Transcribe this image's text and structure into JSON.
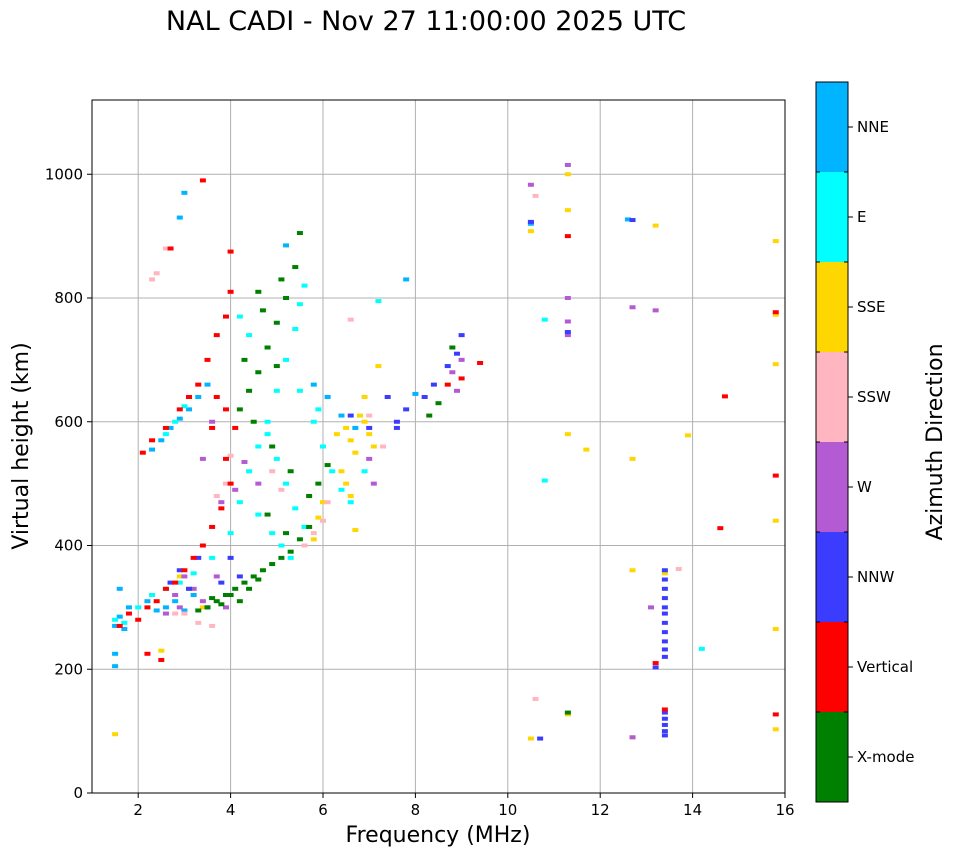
{
  "chart_data": {
    "type": "scatter",
    "title": "NAL CADI - Nov 27 11:00:00 2025 UTC",
    "xlabel": "Frequency (MHz)",
    "ylabel": "Virtual height (km)",
    "xlim": [
      1,
      16
    ],
    "ylim": [
      0,
      1120
    ],
    "xticks": [
      2,
      4,
      6,
      8,
      10,
      12,
      14,
      16
    ],
    "yticks": [
      0,
      200,
      400,
      600,
      800,
      1000
    ],
    "grid": true,
    "colorbar": {
      "label": "Azimuth Direction",
      "categories": [
        {
          "name": "X-mode",
          "color": "#008000"
        },
        {
          "name": "Vertical",
          "color": "#ff0000"
        },
        {
          "name": "NNW",
          "color": "#3c3cff"
        },
        {
          "name": "W",
          "color": "#b45ad2"
        },
        {
          "name": "SSW",
          "color": "#ffb6c1"
        },
        {
          "name": "SSE",
          "color": "#ffd700"
        },
        {
          "name": "E",
          "color": "#00ffff"
        },
        {
          "name": "NNE",
          "color": "#00b4ff"
        }
      ]
    },
    "series": [
      {
        "name": "NNE",
        "points": [
          [
            1.5,
            270
          ],
          [
            1.6,
            285
          ],
          [
            1.7,
            265
          ],
          [
            1.8,
            300
          ],
          [
            1.5,
            205
          ],
          [
            1.5,
            225
          ],
          [
            1.6,
            330
          ],
          [
            2.2,
            310
          ],
          [
            2.4,
            295
          ],
          [
            2.6,
            300
          ],
          [
            2.8,
            310
          ],
          [
            3.0,
            295
          ],
          [
            3.2,
            320
          ],
          [
            2.3,
            555
          ],
          [
            2.5,
            570
          ],
          [
            2.7,
            590
          ],
          [
            2.9,
            605
          ],
          [
            3.1,
            620
          ],
          [
            3.3,
            640
          ],
          [
            3.5,
            660
          ],
          [
            5.2,
            885
          ],
          [
            5.8,
            660
          ],
          [
            6.1,
            640
          ],
          [
            6.4,
            610
          ],
          [
            6.7,
            590
          ],
          [
            3.0,
            970
          ],
          [
            2.9,
            930
          ],
          [
            7.8,
            830
          ],
          [
            8.0,
            645
          ],
          [
            10.5,
            920
          ],
          [
            12.6,
            927
          ]
        ]
      },
      {
        "name": "E",
        "points": [
          [
            1.5,
            280
          ],
          [
            1.7,
            275
          ],
          [
            2.0,
            300
          ],
          [
            2.3,
            320
          ],
          [
            2.6,
            330
          ],
          [
            2.9,
            340
          ],
          [
            3.2,
            355
          ],
          [
            3.6,
            380
          ],
          [
            4.0,
            420
          ],
          [
            4.2,
            470
          ],
          [
            4.4,
            520
          ],
          [
            4.6,
            560
          ],
          [
            4.8,
            600
          ],
          [
            5.0,
            650
          ],
          [
            5.2,
            700
          ],
          [
            5.4,
            750
          ],
          [
            5.5,
            790
          ],
          [
            5.6,
            820
          ],
          [
            4.4,
            740
          ],
          [
            4.2,
            770
          ],
          [
            4.8,
            580
          ],
          [
            5.0,
            540
          ],
          [
            5.2,
            500
          ],
          [
            5.4,
            460
          ],
          [
            5.6,
            430
          ],
          [
            5.8,
            600
          ],
          [
            6.0,
            560
          ],
          [
            6.2,
            520
          ],
          [
            6.4,
            490
          ],
          [
            6.6,
            470
          ],
          [
            6.9,
            520
          ],
          [
            4.6,
            450
          ],
          [
            4.9,
            420
          ],
          [
            5.1,
            400
          ],
          [
            5.3,
            380
          ],
          [
            5.5,
            650
          ],
          [
            5.9,
            620
          ],
          [
            7.2,
            795
          ],
          [
            10.8,
            765
          ],
          [
            10.8,
            505
          ],
          [
            14.2,
            233
          ],
          [
            2.6,
            580
          ],
          [
            2.8,
            600
          ],
          [
            3.0,
            625
          ]
        ]
      },
      {
        "name": "SSE",
        "points": [
          [
            1.5,
            95
          ],
          [
            2.5,
            230
          ],
          [
            6.3,
            580
          ],
          [
            6.5,
            590
          ],
          [
            6.6,
            570
          ],
          [
            6.7,
            550
          ],
          [
            6.8,
            610
          ],
          [
            6.9,
            600
          ],
          [
            7.0,
            580
          ],
          [
            7.1,
            560
          ],
          [
            6.4,
            520
          ],
          [
            6.5,
            500
          ],
          [
            6.6,
            480
          ],
          [
            6.7,
            425
          ],
          [
            6.9,
            640
          ],
          [
            7.2,
            690
          ],
          [
            6.0,
            470
          ],
          [
            5.8,
            410
          ],
          [
            5.9,
            445
          ],
          [
            11.3,
            1000
          ],
          [
            11.3,
            942
          ],
          [
            11.3,
            580
          ],
          [
            11.7,
            555
          ],
          [
            10.5,
            908
          ],
          [
            12.7,
            540
          ],
          [
            13.2,
            917
          ],
          [
            13.9,
            578
          ],
          [
            12.7,
            360
          ],
          [
            13.4,
            355
          ],
          [
            12.7,
            90
          ],
          [
            15.8,
            892
          ],
          [
            15.8,
            773
          ],
          [
            15.8,
            693
          ],
          [
            15.8,
            440
          ],
          [
            15.8,
            265
          ],
          [
            15.8,
            103
          ],
          [
            11.3,
            127
          ],
          [
            10.5,
            88
          ],
          [
            2.9,
            350
          ],
          [
            3.1,
            330
          ],
          [
            3.4,
            300
          ]
        ]
      },
      {
        "name": "SSW",
        "points": [
          [
            2.3,
            830
          ],
          [
            2.4,
            840
          ],
          [
            2.6,
            880
          ],
          [
            3.6,
            270
          ],
          [
            3.9,
            500
          ],
          [
            4.0,
            545
          ],
          [
            6.6,
            765
          ],
          [
            6.1,
            470
          ],
          [
            6.0,
            440
          ],
          [
            5.8,
            420
          ],
          [
            5.6,
            400
          ],
          [
            7.0,
            610
          ],
          [
            7.3,
            560
          ],
          [
            10.6,
            965
          ],
          [
            10.6,
            152
          ],
          [
            13.7,
            362
          ],
          [
            3.0,
            290
          ],
          [
            3.3,
            275
          ],
          [
            4.9,
            520
          ],
          [
            5.1,
            490
          ],
          [
            2.8,
            290
          ],
          [
            3.7,
            480
          ]
        ]
      },
      {
        "name": "W",
        "points": [
          [
            2.6,
            290
          ],
          [
            2.8,
            320
          ],
          [
            3.0,
            350
          ],
          [
            3.2,
            330
          ],
          [
            3.4,
            310
          ],
          [
            3.7,
            350
          ],
          [
            3.9,
            300
          ],
          [
            3.8,
            470
          ],
          [
            4.1,
            490
          ],
          [
            4.3,
            535
          ],
          [
            4.6,
            500
          ],
          [
            7.1,
            500
          ],
          [
            7.0,
            540
          ],
          [
            8.8,
            680
          ],
          [
            9.0,
            700
          ],
          [
            8.9,
            650
          ],
          [
            11.3,
            1015
          ],
          [
            10.5,
            983
          ],
          [
            11.3,
            800
          ],
          [
            11.3,
            762
          ],
          [
            11.3,
            740
          ],
          [
            12.7,
            785
          ],
          [
            13.2,
            780
          ],
          [
            12.7,
            90
          ],
          [
            13.1,
            300
          ],
          [
            3.4,
            540
          ],
          [
            3.6,
            600
          ],
          [
            2.9,
            300
          ]
        ]
      },
      {
        "name": "NNW",
        "points": [
          [
            2.7,
            340
          ],
          [
            2.9,
            360
          ],
          [
            3.1,
            330
          ],
          [
            3.3,
            380
          ],
          [
            3.5,
            300
          ],
          [
            3.8,
            340
          ],
          [
            4.2,
            350
          ],
          [
            4.0,
            380
          ],
          [
            7.6,
            600
          ],
          [
            7.8,
            620
          ],
          [
            7.4,
            640
          ],
          [
            7.6,
            590
          ],
          [
            8.2,
            640
          ],
          [
            8.4,
            660
          ],
          [
            8.7,
            690
          ],
          [
            8.9,
            710
          ],
          [
            9.0,
            740
          ],
          [
            10.5,
            923
          ],
          [
            11.3,
            745
          ],
          [
            10.7,
            88
          ],
          [
            12.7,
            926
          ],
          [
            13.4,
            360
          ],
          [
            13.4,
            345
          ],
          [
            13.4,
            330
          ],
          [
            13.4,
            315
          ],
          [
            13.4,
            300
          ],
          [
            13.4,
            290
          ],
          [
            13.4,
            275
          ],
          [
            13.4,
            260
          ],
          [
            13.4,
            245
          ],
          [
            13.4,
            232
          ],
          [
            13.4,
            220
          ],
          [
            13.4,
            130
          ],
          [
            13.4,
            120
          ],
          [
            13.4,
            110
          ],
          [
            13.4,
            100
          ],
          [
            13.4,
            93
          ],
          [
            13.2,
            203
          ],
          [
            7.0,
            590
          ],
          [
            6.6,
            610
          ]
        ]
      },
      {
        "name": "Vertical",
        "points": [
          [
            1.6,
            270
          ],
          [
            1.8,
            290
          ],
          [
            2.0,
            280
          ],
          [
            2.2,
            300
          ],
          [
            2.4,
            310
          ],
          [
            2.6,
            330
          ],
          [
            2.8,
            340
          ],
          [
            3.0,
            360
          ],
          [
            3.2,
            380
          ],
          [
            3.4,
            400
          ],
          [
            3.6,
            430
          ],
          [
            3.8,
            460
          ],
          [
            4.0,
            500
          ],
          [
            2.1,
            550
          ],
          [
            2.3,
            570
          ],
          [
            2.6,
            590
          ],
          [
            2.9,
            620
          ],
          [
            3.1,
            640
          ],
          [
            3.3,
            660
          ],
          [
            3.5,
            700
          ],
          [
            3.7,
            740
          ],
          [
            3.9,
            770
          ],
          [
            4.0,
            810
          ],
          [
            4.0,
            875
          ],
          [
            3.4,
            990
          ],
          [
            3.9,
            620
          ],
          [
            3.6,
            590
          ],
          [
            2.7,
            880
          ],
          [
            2.2,
            225
          ],
          [
            2.5,
            215
          ],
          [
            9.4,
            695
          ],
          [
            9.0,
            670
          ],
          [
            8.7,
            660
          ],
          [
            11.3,
            900
          ],
          [
            13.2,
            210
          ],
          [
            13.4,
            135
          ],
          [
            14.6,
            428
          ],
          [
            14.7,
            641
          ],
          [
            15.8,
            777
          ],
          [
            15.8,
            513
          ],
          [
            15.8,
            127
          ],
          [
            3.7,
            640
          ],
          [
            3.9,
            540
          ],
          [
            4.1,
            590
          ]
        ]
      },
      {
        "name": "X-mode",
        "points": [
          [
            3.5,
            300
          ],
          [
            3.7,
            310
          ],
          [
            3.9,
            320
          ],
          [
            4.1,
            330
          ],
          [
            4.3,
            340
          ],
          [
            4.5,
            350
          ],
          [
            4.7,
            360
          ],
          [
            4.9,
            370
          ],
          [
            5.1,
            380
          ],
          [
            5.3,
            390
          ],
          [
            5.5,
            410
          ],
          [
            5.7,
            430
          ],
          [
            4.2,
            620
          ],
          [
            4.4,
            650
          ],
          [
            4.6,
            680
          ],
          [
            4.8,
            720
          ],
          [
            5.0,
            760
          ],
          [
            5.2,
            800
          ],
          [
            5.4,
            850
          ],
          [
            5.5,
            905
          ],
          [
            4.3,
            700
          ],
          [
            4.7,
            780
          ],
          [
            5.1,
            830
          ],
          [
            4.5,
            600
          ],
          [
            4.9,
            560
          ],
          [
            5.3,
            520
          ],
          [
            5.7,
            480
          ],
          [
            5.9,
            500
          ],
          [
            6.1,
            530
          ],
          [
            8.3,
            610
          ],
          [
            8.5,
            630
          ],
          [
            8.8,
            720
          ],
          [
            4.0,
            320
          ],
          [
            4.2,
            310
          ],
          [
            4.4,
            330
          ],
          [
            4.6,
            345
          ],
          [
            3.8,
            305
          ],
          [
            3.6,
            315
          ],
          [
            3.3,
            295
          ],
          [
            11.3,
            130
          ],
          [
            4.8,
            450
          ],
          [
            5.2,
            420
          ],
          [
            5.0,
            690
          ],
          [
            4.6,
            810
          ]
        ]
      }
    ]
  }
}
